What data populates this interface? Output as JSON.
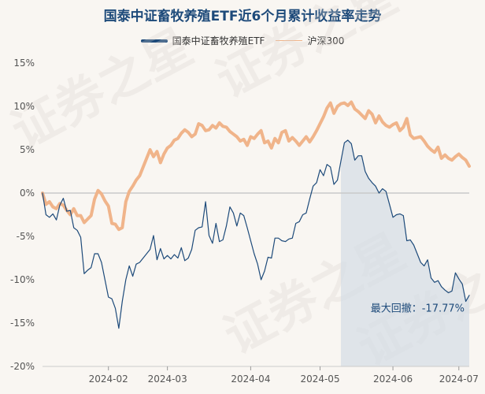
{
  "chart_data": {
    "type": "line",
    "title": "国泰中证畜牧养殖ETF近6个月累计收益率走势",
    "series": [
      {
        "name": "国泰中证畜牧养殖ETF",
        "color": "#1d4a7a",
        "values": [
          0.0,
          -2.5,
          -2.8,
          -2.4,
          -3.1,
          -1.4,
          -0.6,
          -2.1,
          -2.0,
          -4.0,
          -4.3,
          -5.1,
          -9.3,
          -8.9,
          -8.6,
          -7.0,
          -7.0,
          -8.0,
          -10.0,
          -12.0,
          -12.2,
          -13.3,
          -15.6,
          -12.5,
          -10.0,
          -8.4,
          -9.6,
          -8.2,
          -8.0,
          -7.5,
          -7.0,
          -6.5,
          -4.9,
          -7.7,
          -6.4,
          -7.6,
          -7.2,
          -7.6,
          -7.1,
          -7.5,
          -6.3,
          -7.8,
          -7.5,
          -6.5,
          -4.3,
          -4.0,
          -3.9,
          -1.0,
          -4.9,
          -5.8,
          -3.5,
          -5.6,
          -5.4,
          -3.8,
          -1.6,
          -2.3,
          -3.8,
          -2.3,
          -2.6,
          -4.0,
          -5.5,
          -7.0,
          -8.2,
          -10.0,
          -9.0,
          -7.4,
          -7.5,
          -5.2,
          -5.2,
          -5.5,
          -5.6,
          -5.3,
          -5.2,
          -3.5,
          -3.3,
          -2.5,
          -2.3,
          -0.7,
          0.8,
          1.2,
          2.7,
          2.0,
          3.3,
          3.0,
          1.0,
          1.5,
          3.7,
          5.8,
          6.1,
          5.7,
          3.8,
          4.3,
          4.3,
          2.5,
          1.7,
          1.2,
          0.8,
          0.0,
          0.5,
          0.2,
          -1.3,
          -2.8,
          -2.5,
          -2.4,
          -2.6,
          -5.5,
          -5.4,
          -6.0,
          -7.0,
          -8.0,
          -8.4,
          -7.7,
          -9.8,
          -10.3,
          -10.1,
          -10.8,
          -11.2,
          -11.5,
          -11.3,
          -9.2,
          -9.9,
          -10.5,
          -12.5,
          -11.8
        ]
      },
      {
        "name": "沪深300",
        "color": "#f0b48a",
        "values": [
          0.0,
          -1.3,
          -1.0,
          -1.6,
          -1.8,
          -1.2,
          -1.4,
          -2.0,
          -2.5,
          -1.8,
          -2.6,
          -2.6,
          -3.4,
          -3.0,
          -2.6,
          -0.7,
          0.3,
          -0.1,
          -0.9,
          -1.5,
          -3.5,
          -3.6,
          -4.2,
          -4.0,
          -1.0,
          0.2,
          0.8,
          1.5,
          2.0,
          3.0,
          4.0,
          5.0,
          4.2,
          4.8,
          3.5,
          4.5,
          5.2,
          5.5,
          6.1,
          6.3,
          6.9,
          7.3,
          7.0,
          6.5,
          6.8,
          8.0,
          7.8,
          7.2,
          7.3,
          7.8,
          7.5,
          8.1,
          7.7,
          7.6,
          7.1,
          6.8,
          6.5,
          6.0,
          6.2,
          5.5,
          6.5,
          6.3,
          6.8,
          7.2,
          5.8,
          6.0,
          5.2,
          6.3,
          5.8,
          7.0,
          7.2,
          6.0,
          6.4,
          6.0,
          5.5,
          6.0,
          6.5,
          5.9,
          6.5,
          7.2,
          8.0,
          8.8,
          9.8,
          10.4,
          9.2,
          10.0,
          10.3,
          10.4,
          10.1,
          10.5,
          9.7,
          9.4,
          9.0,
          8.6,
          9.5,
          9.1,
          8.1,
          8.9,
          8.2,
          7.8,
          7.6,
          7.9,
          8.1,
          7.2,
          7.6,
          8.6,
          6.7,
          6.3,
          6.4,
          6.5,
          6.0,
          5.4,
          5.0,
          4.7,
          5.3,
          4.0,
          4.4,
          4.0,
          3.8,
          4.2,
          4.5,
          4.1,
          3.8,
          3.1
        ]
      }
    ],
    "x_ticks": [
      {
        "label": "2024-02",
        "index": 19
      },
      {
        "label": "2024-03",
        "index": 36
      },
      {
        "label": "2024-04",
        "index": 60
      },
      {
        "label": "2024-05",
        "index": 80
      },
      {
        "label": "2024-06",
        "index": 101
      },
      {
        "label": "2024-07",
        "index": 120
      }
    ],
    "y_ticks": [
      "15%",
      "10%",
      "5%",
      "0%",
      "-5%",
      "-10%",
      "-15%",
      "-20%"
    ],
    "ylim": [
      -20,
      15
    ],
    "drawdown": {
      "start_index": 86,
      "end_index": 123,
      "label": "最大回撤：-17.77%"
    },
    "watermark": "证券之星",
    "legend_position": "top-center"
  }
}
